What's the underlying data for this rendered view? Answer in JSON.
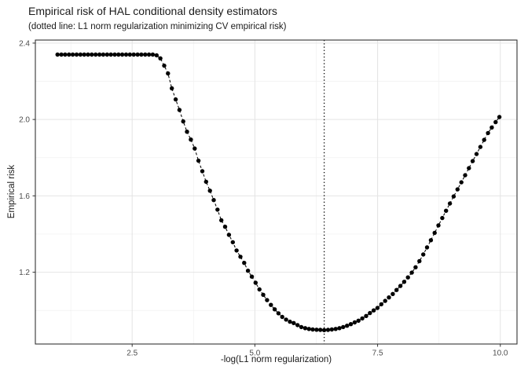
{
  "chart_data": {
    "type": "scatter",
    "title": "Empirical risk of HAL conditional density estimators",
    "subtitle": "(dotted line: L1 norm regularization minimizing CV empirical risk)",
    "xlabel": "-log(L1 norm regularization)",
    "ylabel": "Empirical risk",
    "xlim": [
      0.528,
      10.34
    ],
    "ylim": [
      0.824,
      2.416
    ],
    "x_ticks": {
      "values": [
        2.5,
        5.0,
        7.5,
        10.0
      ],
      "labels": [
        "2.5",
        "5.0",
        "7.5",
        "10.0"
      ]
    },
    "y_ticks": {
      "values": [
        1.2,
        1.6,
        2.0,
        2.4
      ],
      "labels": [
        "1.2",
        "1.6",
        "2.0",
        "2.4"
      ]
    },
    "x_minor": [
      1.25,
      3.75,
      6.25,
      8.75
    ],
    "y_minor": [
      1.0,
      1.4,
      1.8,
      2.2
    ],
    "grid": true,
    "legend_position": "none",
    "vline_x": 6.412,
    "vline_style": "dotted",
    "line_style": "dashed",
    "colors": {
      "point": "#000000",
      "line": "#000000",
      "vline": "#000000",
      "grid_major": "#e4e4e4",
      "grid_minor": "#f0f0f0",
      "panel_border": "#333333",
      "tick_mark": "#333333",
      "tick_label": "#4d4d4d",
      "text": "#1a1a1a"
    },
    "points": [
      [
        0.98,
        2.34
      ],
      [
        1.058,
        2.34
      ],
      [
        1.135,
        2.34
      ],
      [
        1.213,
        2.34
      ],
      [
        1.29,
        2.34
      ],
      [
        1.368,
        2.34
      ],
      [
        1.446,
        2.34
      ],
      [
        1.523,
        2.34
      ],
      [
        1.601,
        2.34
      ],
      [
        1.678,
        2.34
      ],
      [
        1.756,
        2.34
      ],
      [
        1.834,
        2.34
      ],
      [
        1.911,
        2.34
      ],
      [
        1.989,
        2.34
      ],
      [
        2.066,
        2.34
      ],
      [
        2.144,
        2.34
      ],
      [
        2.222,
        2.34
      ],
      [
        2.299,
        2.34
      ],
      [
        2.377,
        2.34
      ],
      [
        2.454,
        2.34
      ],
      [
        2.532,
        2.34
      ],
      [
        2.61,
        2.34
      ],
      [
        2.687,
        2.34
      ],
      [
        2.765,
        2.34
      ],
      [
        2.842,
        2.34
      ],
      [
        2.92,
        2.34
      ],
      [
        2.998,
        2.336
      ],
      [
        3.075,
        2.32
      ],
      [
        3.153,
        2.282
      ],
      [
        3.23,
        2.241
      ],
      [
        3.308,
        2.163
      ],
      [
        3.386,
        2.105
      ],
      [
        3.463,
        2.05
      ],
      [
        3.541,
        1.99
      ],
      [
        3.618,
        1.936
      ],
      [
        3.696,
        1.895
      ],
      [
        3.774,
        1.848
      ],
      [
        3.851,
        1.784
      ],
      [
        3.929,
        1.729
      ],
      [
        4.006,
        1.674
      ],
      [
        4.084,
        1.627
      ],
      [
        4.162,
        1.578
      ],
      [
        4.239,
        1.528
      ],
      [
        4.317,
        1.472
      ],
      [
        4.394,
        1.438
      ],
      [
        4.472,
        1.396
      ],
      [
        4.55,
        1.357
      ],
      [
        4.627,
        1.314
      ],
      [
        4.705,
        1.281
      ],
      [
        4.782,
        1.249
      ],
      [
        4.86,
        1.208
      ],
      [
        4.938,
        1.177
      ],
      [
        5.015,
        1.145
      ],
      [
        5.093,
        1.11
      ],
      [
        5.17,
        1.082
      ],
      [
        5.248,
        1.054
      ],
      [
        5.326,
        1.029
      ],
      [
        5.403,
        1.006
      ],
      [
        5.481,
        0.985
      ],
      [
        5.558,
        0.966
      ],
      [
        5.636,
        0.952
      ],
      [
        5.714,
        0.941
      ],
      [
        5.791,
        0.934
      ],
      [
        5.869,
        0.923
      ],
      [
        5.946,
        0.913
      ],
      [
        6.024,
        0.907
      ],
      [
        6.102,
        0.903
      ],
      [
        6.179,
        0.9
      ],
      [
        6.257,
        0.899
      ],
      [
        6.334,
        0.898
      ],
      [
        6.412,
        0.897
      ],
      [
        6.49,
        0.898
      ],
      [
        6.567,
        0.9
      ],
      [
        6.645,
        0.903
      ],
      [
        6.722,
        0.907
      ],
      [
        6.8,
        0.913
      ],
      [
        6.878,
        0.92
      ],
      [
        6.955,
        0.928
      ],
      [
        7.033,
        0.937
      ],
      [
        7.11,
        0.946
      ],
      [
        7.188,
        0.958
      ],
      [
        7.266,
        0.971
      ],
      [
        7.343,
        0.986
      ],
      [
        7.421,
        1.0
      ],
      [
        7.498,
        1.013
      ],
      [
        7.576,
        1.032
      ],
      [
        7.654,
        1.05
      ],
      [
        7.731,
        1.068
      ],
      [
        7.809,
        1.086
      ],
      [
        7.886,
        1.107
      ],
      [
        7.964,
        1.128
      ],
      [
        8.042,
        1.15
      ],
      [
        8.119,
        1.173
      ],
      [
        8.197,
        1.198
      ],
      [
        8.274,
        1.226
      ],
      [
        8.352,
        1.258
      ],
      [
        8.43,
        1.293
      ],
      [
        8.507,
        1.33
      ],
      [
        8.585,
        1.368
      ],
      [
        8.662,
        1.406
      ],
      [
        8.74,
        1.445
      ],
      [
        8.818,
        1.484
      ],
      [
        8.895,
        1.522
      ],
      [
        8.973,
        1.56
      ],
      [
        9.05,
        1.597
      ],
      [
        9.128,
        1.634
      ],
      [
        9.206,
        1.671
      ],
      [
        9.283,
        1.708
      ],
      [
        9.361,
        1.745
      ],
      [
        9.438,
        1.782
      ],
      [
        9.516,
        1.819
      ],
      [
        9.594,
        1.856
      ],
      [
        9.671,
        1.893
      ],
      [
        9.749,
        1.929
      ],
      [
        9.826,
        1.958
      ],
      [
        9.904,
        1.986
      ],
      [
        9.982,
        2.013
      ]
    ]
  }
}
